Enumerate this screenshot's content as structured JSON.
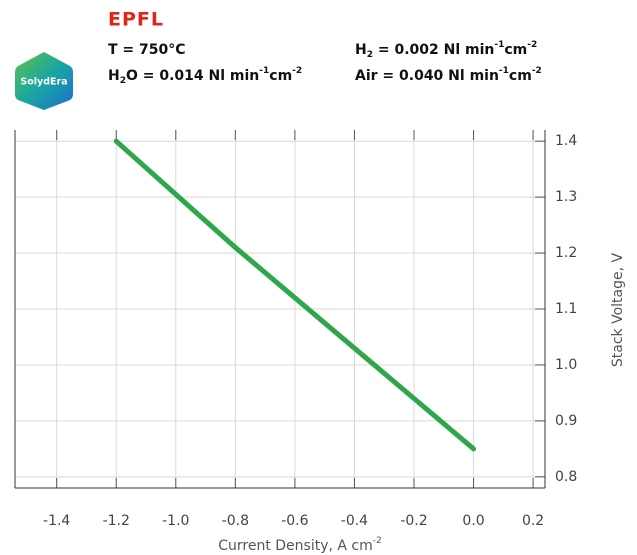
{
  "header": {
    "logo_left": "SolydEra",
    "logo_right": "EPFL",
    "conditions": [
      [
        "T = 750°C"
      ],
      [
        "H",
        "2",
        " = 0.002 Nl min",
        "-1",
        "cm",
        "-2"
      ],
      [
        "H",
        "2",
        "O = 0.014 Nl min",
        "-1",
        "cm",
        "-2"
      ],
      [
        "Air = 0.040 Nl min",
        "-1",
        "cm",
        "-2"
      ]
    ]
  },
  "chart_data": {
    "type": "line",
    "x": [
      -1.2,
      -1.0,
      -0.8,
      -0.6,
      -0.4,
      -0.2,
      0.0
    ],
    "series": [
      {
        "color": "#2ea64a",
        "values": [
          1.4,
          1.305,
          1.21,
          1.12,
          1.03,
          0.94,
          0.85
        ]
      }
    ],
    "xlabel": [
      "Current Density, A cm",
      "-2"
    ],
    "ylabel": "Stack Voltage, V",
    "xlim": [
      -1.54,
      0.24
    ],
    "ylim": [
      0.78,
      1.42
    ],
    "xticks": [
      -1.4,
      -1.2,
      {
        "value": -1.0,
        "label": "-1.0"
      },
      -0.8,
      -0.6,
      -0.4,
      -0.2,
      {
        "value": 0,
        "label": "0.0"
      },
      0.2
    ],
    "yticks": [
      1.4,
      1.3,
      1.2,
      1.1,
      {
        "value": 1.0,
        "label": "1.0"
      },
      0.9,
      0.8
    ],
    "grid": true
  }
}
